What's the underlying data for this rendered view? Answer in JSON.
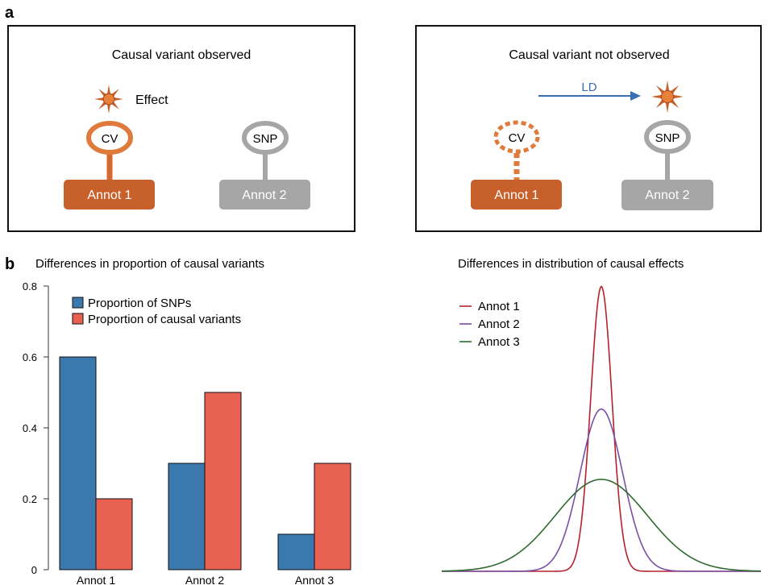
{
  "panel_a": {
    "label": "a",
    "left": {
      "title": "Causal variant observed",
      "effect_label": "Effect",
      "cv_label": "CV",
      "snp_label": "SNP",
      "annot1": "Annot 1",
      "annot2": "Annot 2"
    },
    "right": {
      "title": "Causal variant not observed",
      "ld_label": "LD",
      "cv_label": "CV",
      "snp_label": "SNP",
      "annot1": "Annot 1",
      "annot2": "Annot 2"
    }
  },
  "panel_b": {
    "label": "b",
    "left_title": "Differences in proportion of causal variants",
    "right_title": "Differences in distribution of causal effects"
  },
  "colors": {
    "orange": "#c8602b",
    "light_orange": "#e07a3a",
    "grey": "#a6a6a6",
    "blue": "#3a78ad",
    "red": "#e86050",
    "ld_arrow": "#3b6db3",
    "annot1_line": "#b5222b",
    "annot2_line": "#7a4fa8",
    "annot3_line": "#2e6b30"
  },
  "chart_data": [
    {
      "type": "bar",
      "title": "Differences in proportion of causal variants",
      "categories": [
        "Annot 1",
        "Annot 2",
        "Annot 3"
      ],
      "series": [
        {
          "name": "Proportion of SNPs",
          "values": [
            0.6,
            0.3,
            0.1
          ]
        },
        {
          "name": "Proportion of causal variants",
          "values": [
            0.2,
            0.5,
            0.3
          ]
        }
      ],
      "yticks": [
        "0",
        "0.2",
        "0.4",
        "0.6",
        "0.8"
      ],
      "ylim": [
        0,
        0.8
      ],
      "legend": "top-left"
    },
    {
      "type": "line",
      "title": "Differences in distribution of causal effects",
      "series": [
        {
          "name": "Annot 1",
          "peak": 0.79,
          "sd": 0.3
        },
        {
          "name": "Annot 2",
          "peak": 0.45,
          "sd": 0.6
        },
        {
          "name": "Annot 3",
          "peak": 0.255,
          "sd": 1.3
        }
      ],
      "xlim": [
        -4.5,
        4.5
      ],
      "ylim": [
        0,
        0.8
      ],
      "legend": "top-left"
    }
  ]
}
